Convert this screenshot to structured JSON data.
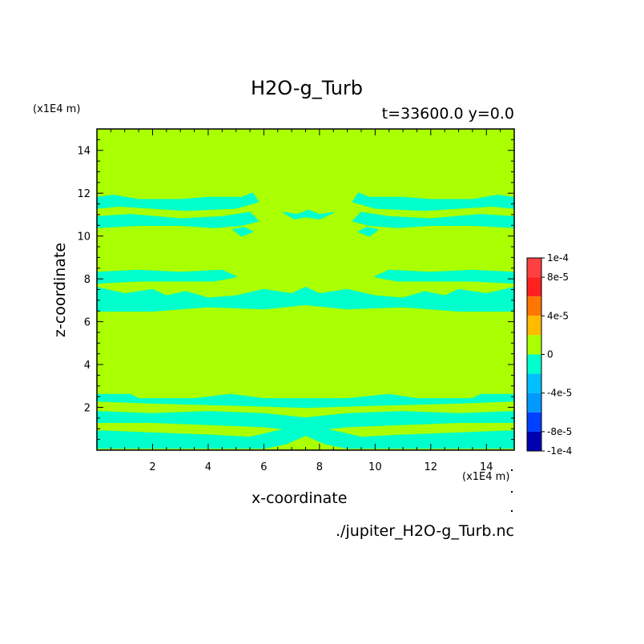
{
  "chart_data": {
    "type": "heatmap",
    "title": "H2O-g_Turb",
    "subtitle": "t=33600.0 y=0.0",
    "xlabel": "x-coordinate",
    "ylabel": "z-coordinate",
    "x_unit": "(x1E4 m)",
    "y_unit": "(x1E4 m)",
    "footer": "./jupiter_H2O-g_Turb.nc",
    "xlim": [
      0,
      15
    ],
    "ylim": [
      0,
      15
    ],
    "x_ticks": [
      "2",
      "4",
      "6",
      "8",
      "10",
      "12",
      "14"
    ],
    "y_ticks": [
      "2",
      "4",
      "6",
      "8",
      "10",
      "12",
      "14"
    ],
    "background_level": "0",
    "background_color": "#aaff00",
    "colorbar": {
      "labels": [
        "1e-4",
        "8e-5",
        "4e-5",
        "0",
        "-4e-5",
        "-8e-5",
        "-1e-4"
      ],
      "levels": [
        {
          "from": 8e-05,
          "to": 0.0001,
          "color": "#ff4040"
        },
        {
          "from": 6e-05,
          "to": 8e-05,
          "color": "#ff2020"
        },
        {
          "from": 4e-05,
          "to": 6e-05,
          "color": "#ff7700"
        },
        {
          "from": 2e-05,
          "to": 4e-05,
          "color": "#ffbb00"
        },
        {
          "from": 0,
          "to": 2e-05,
          "color": "#aaff00"
        },
        {
          "from": -2e-05,
          "to": 0,
          "color": "#00ffcc"
        },
        {
          "from": -4e-05,
          "to": -2e-05,
          "color": "#00c0ff"
        },
        {
          "from": -6e-05,
          "to": -4e-05,
          "color": "#0099ff"
        },
        {
          "from": -8e-05,
          "to": -6e-05,
          "color": "#0040ff"
        },
        {
          "from": -0.0001,
          "to": -8e-05,
          "color": "#0000b0"
        }
      ]
    },
    "negative_bands": [
      {
        "name": "band-upper-left-1",
        "color": "#00ffcc",
        "points": [
          [
            0,
            11.8
          ],
          [
            0.6,
            11.9
          ],
          [
            1.5,
            11.7
          ],
          [
            3,
            11.7
          ],
          [
            4,
            11.8
          ],
          [
            5.2,
            11.8
          ],
          [
            5.6,
            12.0
          ],
          [
            5.8,
            11.6
          ],
          [
            5,
            11.3
          ],
          [
            3.2,
            11.2
          ],
          [
            2,
            11.3
          ],
          [
            0.8,
            11.4
          ],
          [
            0,
            11.3
          ]
        ]
      },
      {
        "name": "band-upper-left-2",
        "color": "#00ffcc",
        "points": [
          [
            0,
            10.9
          ],
          [
            1.2,
            11.0
          ],
          [
            3,
            10.8
          ],
          [
            4.5,
            10.9
          ],
          [
            5.5,
            11.1
          ],
          [
            5.8,
            10.7
          ],
          [
            5.2,
            10.5
          ],
          [
            4.2,
            10.4
          ],
          [
            3,
            10.5
          ],
          [
            1.5,
            10.5
          ],
          [
            0,
            10.4
          ]
        ]
      },
      {
        "name": "band-upper-right-1",
        "color": "#00ffcc",
        "points": [
          [
            15,
            11.8
          ],
          [
            14.4,
            11.9
          ],
          [
            13.5,
            11.7
          ],
          [
            12,
            11.7
          ],
          [
            11,
            11.8
          ],
          [
            9.8,
            11.8
          ],
          [
            9.4,
            12.0
          ],
          [
            9.2,
            11.6
          ],
          [
            10,
            11.3
          ],
          [
            11.8,
            11.2
          ],
          [
            13,
            11.3
          ],
          [
            14.2,
            11.4
          ],
          [
            15,
            11.3
          ]
        ]
      },
      {
        "name": "band-upper-right-2",
        "color": "#00ffcc",
        "points": [
          [
            15,
            10.9
          ],
          [
            13.8,
            11.0
          ],
          [
            12,
            10.8
          ],
          [
            10.5,
            10.9
          ],
          [
            9.5,
            11.1
          ],
          [
            9.2,
            10.7
          ],
          [
            9.8,
            10.5
          ],
          [
            10.8,
            10.4
          ],
          [
            12,
            10.5
          ],
          [
            13.5,
            10.5
          ],
          [
            15,
            10.4
          ]
        ]
      },
      {
        "name": "band-center-top",
        "color": "#00ffcc",
        "points": [
          [
            6.7,
            11.1
          ],
          [
            7.2,
            11.0
          ],
          [
            7.6,
            11.2
          ],
          [
            8.0,
            11.0
          ],
          [
            8.5,
            11.1
          ],
          [
            8.0,
            10.8
          ],
          [
            7.5,
            10.9
          ],
          [
            7.1,
            10.8
          ]
        ]
      },
      {
        "name": "band-blob-left",
        "color": "#00ffcc",
        "points": [
          [
            4.9,
            10.3
          ],
          [
            5.3,
            10.4
          ],
          [
            5.6,
            10.2
          ],
          [
            5.2,
            10.0
          ]
        ]
      },
      {
        "name": "band-blob-right",
        "color": "#00ffcc",
        "points": [
          [
            10.1,
            10.3
          ],
          [
            9.7,
            10.4
          ],
          [
            9.4,
            10.2
          ],
          [
            9.8,
            10.0
          ]
        ]
      },
      {
        "name": "band-mid-1",
        "color": "#00ffcc",
        "points": [
          [
            0,
            8.3
          ],
          [
            1.5,
            8.4
          ],
          [
            3,
            8.3
          ],
          [
            4.5,
            8.4
          ],
          [
            5,
            8.1
          ],
          [
            4.2,
            7.9
          ],
          [
            3,
            7.9
          ],
          [
            1.5,
            7.9
          ],
          [
            0,
            7.8
          ]
        ]
      },
      {
        "name": "band-mid-1r",
        "color": "#00ffcc",
        "points": [
          [
            15,
            8.3
          ],
          [
            13.5,
            8.4
          ],
          [
            12,
            8.3
          ],
          [
            10.5,
            8.4
          ],
          [
            10,
            8.1
          ],
          [
            10.8,
            7.9
          ],
          [
            12,
            7.9
          ],
          [
            13.5,
            7.9
          ],
          [
            15,
            7.8
          ]
        ]
      },
      {
        "name": "band-mid-2",
        "color": "#00ffcc",
        "points": [
          [
            0,
            7.6
          ],
          [
            1,
            7.3
          ],
          [
            2,
            7.5
          ],
          [
            2.5,
            7.2
          ],
          [
            3.2,
            7.4
          ],
          [
            4,
            7.1
          ],
          [
            5,
            7.2
          ],
          [
            6,
            7.5
          ],
          [
            7,
            7.3
          ],
          [
            7.5,
            7.6
          ],
          [
            8,
            7.3
          ],
          [
            9,
            7.5
          ],
          [
            10,
            7.2
          ],
          [
            11,
            7.1
          ],
          [
            11.8,
            7.4
          ],
          [
            12.5,
            7.2
          ],
          [
            13,
            7.5
          ],
          [
            14,
            7.3
          ],
          [
            15,
            7.6
          ],
          [
            15,
            6.5
          ],
          [
            13,
            6.5
          ],
          [
            11,
            6.7
          ],
          [
            9,
            6.6
          ],
          [
            7.5,
            6.8
          ],
          [
            6,
            6.6
          ],
          [
            4,
            6.7
          ],
          [
            2,
            6.5
          ],
          [
            0,
            6.5
          ]
        ]
      },
      {
        "name": "band-low-1",
        "color": "#00ffcc",
        "points": [
          [
            0,
            2.6
          ],
          [
            1.2,
            2.6
          ],
          [
            1.5,
            2.4
          ],
          [
            3.5,
            2.4
          ],
          [
            4.8,
            2.6
          ],
          [
            6,
            2.4
          ],
          [
            9,
            2.4
          ],
          [
            10.5,
            2.6
          ],
          [
            11.5,
            2.4
          ],
          [
            13.5,
            2.4
          ],
          [
            13.8,
            2.6
          ],
          [
            15,
            2.6
          ],
          [
            15,
            2.3
          ],
          [
            13,
            2.2
          ],
          [
            10,
            2.1
          ],
          [
            7.5,
            2.0
          ],
          [
            5,
            2.1
          ],
          [
            2,
            2.2
          ],
          [
            0,
            2.3
          ]
        ]
      },
      {
        "name": "band-low-2",
        "color": "#00ffcc",
        "points": [
          [
            0,
            1.8
          ],
          [
            2,
            1.7
          ],
          [
            4,
            1.8
          ],
          [
            6,
            1.7
          ],
          [
            7.5,
            1.5
          ],
          [
            9,
            1.7
          ],
          [
            11,
            1.8
          ],
          [
            13,
            1.7
          ],
          [
            15,
            1.8
          ],
          [
            15,
            1.3
          ],
          [
            13,
            1.3
          ],
          [
            11,
            1.2
          ],
          [
            9,
            1.1
          ],
          [
            7.5,
            0.9
          ],
          [
            6,
            1.1
          ],
          [
            4,
            1.2
          ],
          [
            2,
            1.3
          ],
          [
            0,
            1.3
          ]
        ]
      },
      {
        "name": "band-low-3",
        "color": "#00ffcc",
        "points": [
          [
            0,
            0.9
          ],
          [
            2,
            0.8
          ],
          [
            4,
            0.7
          ],
          [
            5.5,
            0.6
          ],
          [
            6.5,
            0.9
          ],
          [
            7.5,
            1.2
          ],
          [
            8.5,
            0.9
          ],
          [
            9.5,
            0.6
          ],
          [
            11,
            0.7
          ],
          [
            13,
            0.8
          ],
          [
            15,
            0.9
          ],
          [
            15,
            0.1
          ],
          [
            9,
            0.1
          ],
          [
            8.2,
            0.3
          ],
          [
            7.5,
            0.7
          ],
          [
            6.8,
            0.3
          ],
          [
            6,
            0.1
          ],
          [
            0,
            0.1
          ]
        ]
      }
    ]
  }
}
